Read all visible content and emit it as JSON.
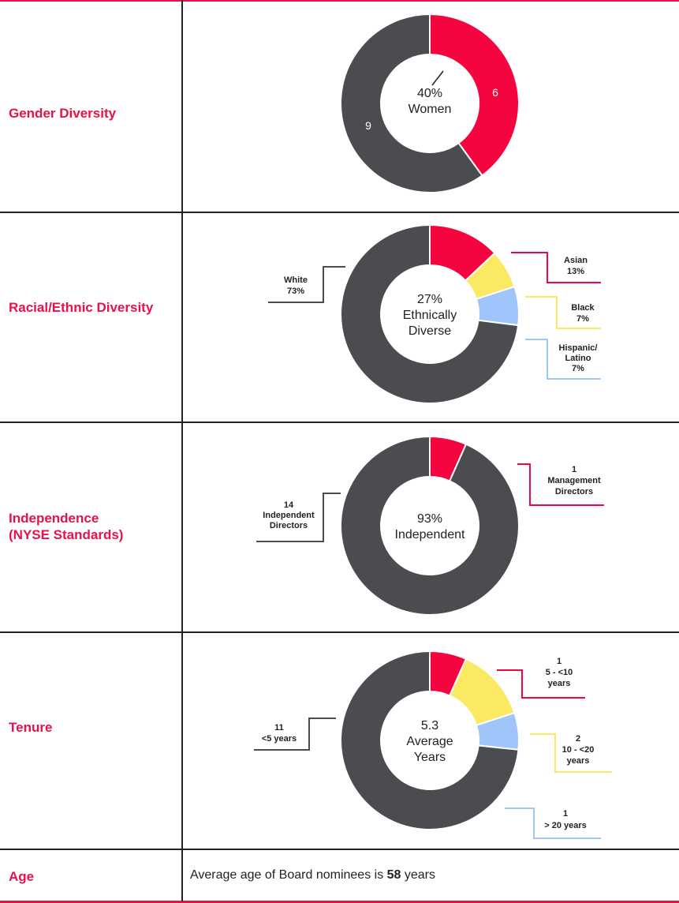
{
  "colors": {
    "accent": "#e8114a",
    "dark": "#4b4c4f",
    "red": "#f5053f",
    "yellow": "#fbe964",
    "blue": "#a0c5fb",
    "rule": "#222222"
  },
  "rows": [
    {
      "label": "Gender Diversity"
    },
    {
      "label": "Racial/Ethnic Diversity"
    },
    {
      "label": "Independence\n(NYSE Standards)"
    },
    {
      "label": "Tenure"
    },
    {
      "label": "Age"
    }
  ],
  "age": {
    "prefix": "Average age of Board nominees is ",
    "value": "58",
    "suffix": " years"
  },
  "chart_data": [
    {
      "type": "pie",
      "title": "Gender Diversity",
      "center_text": [
        "40%",
        "Women"
      ],
      "slices": [
        {
          "label": "6",
          "value": 6,
          "color": "red"
        },
        {
          "label": "9",
          "value": 9,
          "color": "dark"
        }
      ]
    },
    {
      "type": "pie",
      "title": "Racial/Ethnic Diversity",
      "center_text": [
        "27%",
        "Ethnically",
        "Diverse"
      ],
      "slices": [
        {
          "label": "Asian",
          "pct": "13%",
          "value": 13,
          "color": "red"
        },
        {
          "label": "Black",
          "pct": "7%",
          "value": 7,
          "color": "yellow"
        },
        {
          "label": "Hispanic/\nLatino",
          "pct": "7%",
          "value": 7,
          "color": "blue"
        },
        {
          "label": "White",
          "pct": "73%",
          "value": 73,
          "color": "dark"
        }
      ]
    },
    {
      "type": "pie",
      "title": "Independence (NYSE Standards)",
      "center_text": [
        "93%",
        "Independent"
      ],
      "slices": [
        {
          "label": "Management\nDirectors",
          "count": "1",
          "value": 1,
          "color": "red"
        },
        {
          "label": "Independent\nDirectors",
          "count": "14",
          "value": 14,
          "color": "dark"
        }
      ]
    },
    {
      "type": "pie",
      "title": "Tenure",
      "center_text": [
        "5.3",
        "Average",
        "Years"
      ],
      "slices": [
        {
          "label": "5 - <10\nyears",
          "count": "1",
          "value": 1,
          "color": "red"
        },
        {
          "label": "10 - <20\nyears",
          "count": "2",
          "value": 2,
          "color": "yellow"
        },
        {
          "label": "> 20 years",
          "count": "1",
          "value": 1,
          "color": "blue"
        },
        {
          "label": "<5 years",
          "count": "11",
          "value": 11,
          "color": "dark"
        }
      ]
    }
  ]
}
